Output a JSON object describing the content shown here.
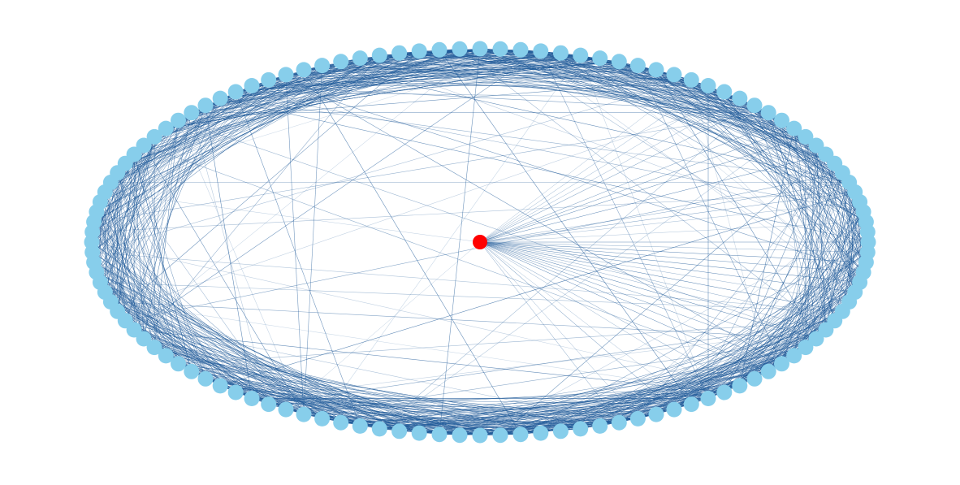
{
  "diagram": {
    "type": "network-graph",
    "layout": "circular",
    "node_count_ring": 120,
    "hub_node_count": 1,
    "colors": {
      "ring_node": "#87ceeb",
      "hub_node": "#ff0000",
      "edge": "#1f5a99",
      "background": "#ffffff"
    }
  }
}
